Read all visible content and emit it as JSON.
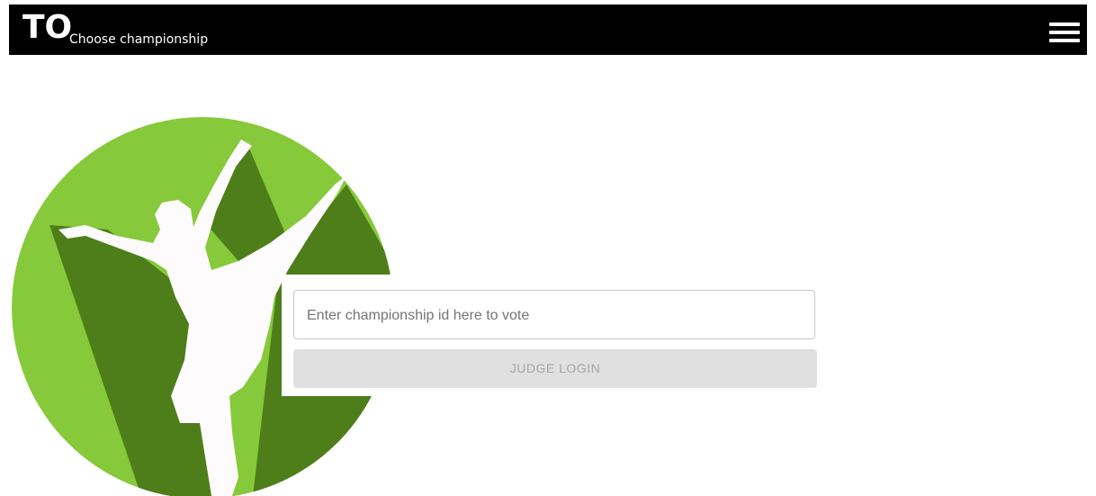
{
  "header": {
    "logo": "TO",
    "subtitle": "Choose championship"
  },
  "form": {
    "placeholder": "Enter championship id here to vote",
    "button": "JUDGE LOGIN"
  }
}
